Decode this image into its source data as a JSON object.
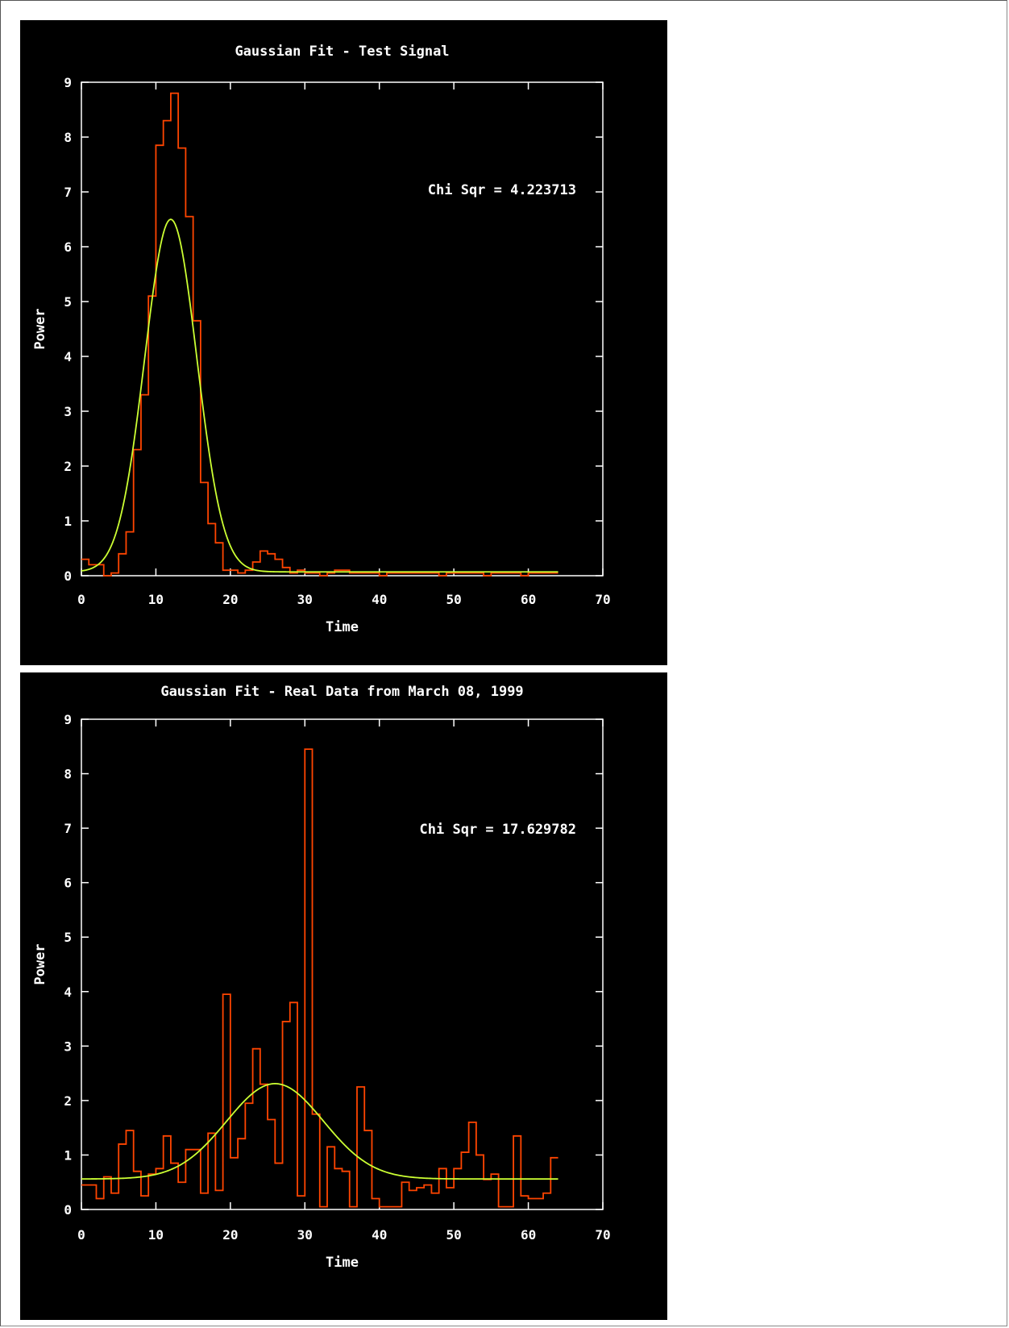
{
  "colors": {
    "background": "#000000",
    "axes": "#ffffff",
    "histogram": "#ff4500",
    "fit": "#ccff33"
  },
  "chart_data": [
    {
      "type": "line",
      "title": "Gaussian Fit - Test Signal",
      "xlabel": "Time",
      "ylabel": "Power",
      "xlim": [
        0,
        70
      ],
      "ylim": [
        0,
        9
      ],
      "xticks": [
        0,
        10,
        20,
        30,
        40,
        50,
        60,
        70
      ],
      "yticks": [
        0,
        1,
        2,
        3,
        4,
        5,
        6,
        7,
        8,
        9
      ],
      "annotation": "Chi Sqr = 4.223713",
      "annotation_position": "top-right",
      "grid": false,
      "series": [
        {
          "style": "steps",
          "color": "#ff4500",
          "x": [
            0,
            1,
            2,
            3,
            4,
            5,
            6,
            7,
            8,
            9,
            10,
            11,
            12,
            13,
            14,
            15,
            16,
            17,
            18,
            19,
            20,
            21,
            22,
            23,
            24,
            25,
            26,
            27,
            28,
            29,
            30,
            31,
            32,
            33,
            34,
            35,
            36,
            37,
            38,
            39,
            40,
            41,
            42,
            43,
            44,
            45,
            46,
            47,
            48,
            49,
            50,
            51,
            52,
            53,
            54,
            55,
            56,
            57,
            58,
            59,
            60,
            61,
            62,
            63
          ],
          "y": [
            0.3,
            0.2,
            0.2,
            0.0,
            0.05,
            0.4,
            0.8,
            2.3,
            3.3,
            5.1,
            7.85,
            8.3,
            8.8,
            7.8,
            6.55,
            4.65,
            1.7,
            0.95,
            0.6,
            0.1,
            0.1,
            0.05,
            0.1,
            0.25,
            0.45,
            0.4,
            0.3,
            0.15,
            0.05,
            0.1,
            0.05,
            0.05,
            0.0,
            0.05,
            0.1,
            0.1,
            0.05,
            0.05,
            0.05,
            0.05,
            0.0,
            0.05,
            0.05,
            0.05,
            0.05,
            0.05,
            0.05,
            0.05,
            0.0,
            0.05,
            0.05,
            0.05,
            0.05,
            0.05,
            0.0,
            0.05,
            0.05,
            0.05,
            0.05,
            0.0,
            0.05,
            0.05,
            0.05,
            0.05
          ]
        },
        {
          "style": "curve",
          "color": "#ccff33",
          "function": "gaussian",
          "amplitude": 6.43,
          "mean": 12.0,
          "sigma": 3.5,
          "offset": 0.07,
          "x_range": [
            0,
            64
          ]
        }
      ]
    },
    {
      "type": "line",
      "title": "Gaussian Fit - Real Data from March 08, 1999",
      "xlabel": "Time",
      "ylabel": "Power",
      "xlim": [
        0,
        70
      ],
      "ylim": [
        0,
        9
      ],
      "xticks": [
        0,
        10,
        20,
        30,
        40,
        50,
        60,
        70
      ],
      "yticks": [
        0,
        1,
        2,
        3,
        4,
        5,
        6,
        7,
        8,
        9
      ],
      "annotation": "Chi Sqr = 17.629782",
      "annotation_position": "top-right",
      "grid": false,
      "series": [
        {
          "style": "steps",
          "color": "#ff4500",
          "x": [
            0,
            1,
            2,
            3,
            4,
            5,
            6,
            7,
            8,
            9,
            10,
            11,
            12,
            13,
            14,
            15,
            16,
            17,
            18,
            19,
            20,
            21,
            22,
            23,
            24,
            25,
            26,
            27,
            28,
            29,
            30,
            31,
            32,
            33,
            34,
            35,
            36,
            37,
            38,
            39,
            40,
            41,
            42,
            43,
            44,
            45,
            46,
            47,
            48,
            49,
            50,
            51,
            52,
            53,
            54,
            55,
            56,
            57,
            58,
            59,
            60,
            61,
            62,
            63
          ],
          "y": [
            0.45,
            0.45,
            0.2,
            0.6,
            0.3,
            1.2,
            1.45,
            0.7,
            0.25,
            0.65,
            0.75,
            1.35,
            0.85,
            0.5,
            1.1,
            1.1,
            0.3,
            1.4,
            0.35,
            3.95,
            0.95,
            1.3,
            1.95,
            2.95,
            2.3,
            1.65,
            0.85,
            3.45,
            3.8,
            0.25,
            8.45,
            1.75,
            0.05,
            1.15,
            0.75,
            0.7,
            0.05,
            2.25,
            1.45,
            0.2,
            0.05,
            0.05,
            0.05,
            0.5,
            0.35,
            0.4,
            0.45,
            0.3,
            0.75,
            0.4,
            0.75,
            1.05,
            1.6,
            1.0,
            0.55,
            0.65,
            0.05,
            0.05,
            1.35,
            0.25,
            0.2,
            0.2,
            0.3,
            0.95
          ]
        },
        {
          "style": "curve",
          "color": "#ccff33",
          "function": "gaussian",
          "amplitude": 1.75,
          "mean": 26.0,
          "sigma": 6.5,
          "offset": 0.56,
          "x_range": [
            0,
            64
          ]
        }
      ]
    }
  ]
}
